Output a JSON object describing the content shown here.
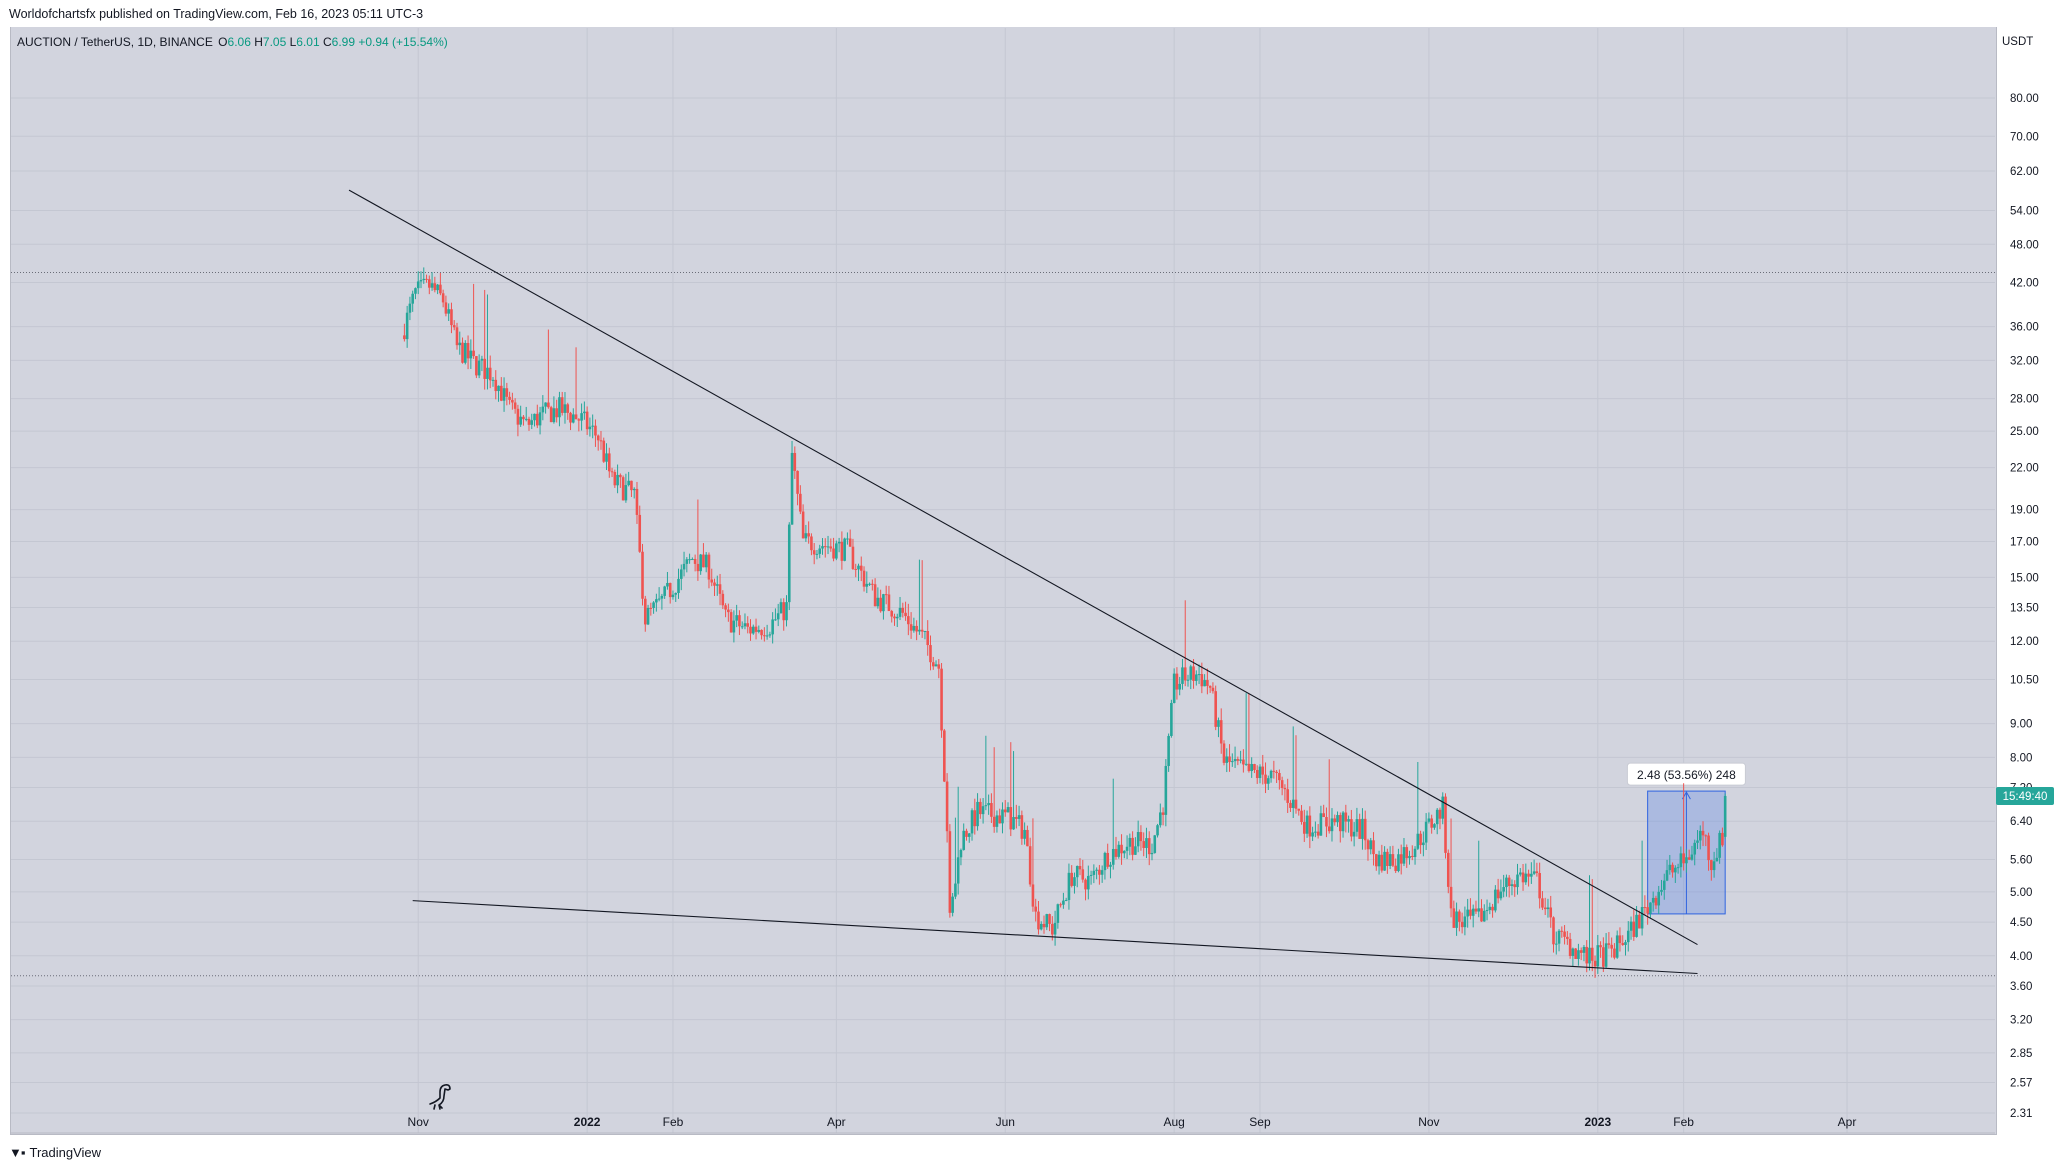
{
  "header": {
    "published": "Worldofchartsfx published on TradingView.com, Feb 16, 2023 05:11 UTC-3"
  },
  "legend": {
    "symbol": "AUCTION / TetherUS, 1D, BINANCE",
    "o_label": "O",
    "o_value": "6.06",
    "h_label": "H",
    "h_value": "7.05",
    "l_label": "L",
    "l_value": "6.01",
    "c_label": "C",
    "c_value": "6.99",
    "change": "+0.94 (+15.54%)"
  },
  "measure": {
    "label": "2.48 (53.56%) 248",
    "from_price": 4.63,
    "to_price": 7.11,
    "start_date": "2023-01-19",
    "end_date": "2023-02-16"
  },
  "countdown": "15:49:40",
  "footer": {
    "brand": "TradingView"
  },
  "colors": {
    "up": "#26a69a",
    "down": "#ef5350",
    "countdown_bg": "#26a69a",
    "measure_fill": "#5b83e6",
    "trendline": "#131722"
  },
  "icons": {
    "watermark": "dinosaur-icon",
    "brand": "tradingview-logo-icon"
  },
  "chart_data": {
    "type": "candlestick",
    "title": "AUCTION / TetherUS, 1D, BINANCE",
    "currency": "USDT",
    "y_scale": "log",
    "ylim": [
      2.31,
      92
    ],
    "xlim": [
      "2021-10-10",
      "2023-05-15"
    ],
    "y_ticks": [
      "80.00",
      "70.00",
      "62.00",
      "54.00",
      "48.00",
      "42.00",
      "36.00",
      "32.00",
      "28.00",
      "25.00",
      "22.00",
      "19.00",
      "17.00",
      "15.00",
      "13.50",
      "12.00",
      "10.50",
      "9.00",
      "8.00",
      "7.20",
      "6.40",
      "5.60",
      "5.00",
      "4.50",
      "4.00",
      "3.60",
      "3.20",
      "2.85",
      "2.57",
      "2.31"
    ],
    "x_ticks": [
      {
        "date": "2021-11-01",
        "label": "Nov",
        "bold": false
      },
      {
        "date": "2022-01-01",
        "label": "2022",
        "bold": true
      },
      {
        "date": "2022-02-01",
        "label": "Feb",
        "bold": false
      },
      {
        "date": "2022-04-01",
        "label": "Apr",
        "bold": false
      },
      {
        "date": "2022-06-01",
        "label": "Jun",
        "bold": false
      },
      {
        "date": "2022-08-01",
        "label": "Aug",
        "bold": false
      },
      {
        "date": "2022-09-01",
        "label": "Sep",
        "bold": false
      },
      {
        "date": "2022-11-01",
        "label": "Nov",
        "bold": false
      },
      {
        "date": "2023-01-01",
        "label": "2023",
        "bold": true
      },
      {
        "date": "2023-02-01",
        "label": "Feb",
        "bold": false
      },
      {
        "date": "2023-04-01",
        "label": "Apr",
        "bold": false
      }
    ],
    "dotted_levels": [
      43.5,
      3.73
    ],
    "trendlines": [
      {
        "name": "descending-resistance",
        "from": {
          "date": "2021-10-07",
          "price": 58.0
        },
        "to": {
          "date": "2023-02-06",
          "price": 4.16
        }
      },
      {
        "name": "descending-support",
        "from": {
          "date": "2021-10-30",
          "price": 4.85
        },
        "to": {
          "date": "2023-02-06",
          "price": 3.76
        }
      }
    ],
    "anchors": [
      {
        "date": "2021-10-27",
        "price": 36.0
      },
      {
        "date": "2021-10-31",
        "price": 40.5
      },
      {
        "date": "2021-11-05",
        "price": 41.5
      },
      {
        "date": "2021-11-10",
        "price": 39.5
      },
      {
        "date": "2021-11-15",
        "price": 33.5
      },
      {
        "date": "2021-11-22",
        "price": 31.5
      },
      {
        "date": "2021-11-28",
        "price": 30.5
      },
      {
        "date": "2021-12-04",
        "price": 27.0
      },
      {
        "date": "2021-12-10",
        "price": 25.5
      },
      {
        "date": "2021-12-16",
        "price": 26.5
      },
      {
        "date": "2021-12-22",
        "price": 27.0
      },
      {
        "date": "2021-12-30",
        "price": 26.0
      },
      {
        "date": "2022-01-05",
        "price": 24.5
      },
      {
        "date": "2022-01-10",
        "price": 21.0
      },
      {
        "date": "2022-01-18",
        "price": 20.0
      },
      {
        "date": "2022-01-22",
        "price": 13.0
      },
      {
        "date": "2022-01-28",
        "price": 13.8
      },
      {
        "date": "2022-02-08",
        "price": 16.0
      },
      {
        "date": "2022-02-14",
        "price": 15.5
      },
      {
        "date": "2022-02-20",
        "price": 13.0
      },
      {
        "date": "2022-02-28",
        "price": 12.5
      },
      {
        "date": "2022-03-08",
        "price": 12.7
      },
      {
        "date": "2022-03-14",
        "price": 13.5
      },
      {
        "date": "2022-03-16",
        "price": 23.0
      },
      {
        "date": "2022-03-20",
        "price": 17.0
      },
      {
        "date": "2022-03-28",
        "price": 16.8
      },
      {
        "date": "2022-04-05",
        "price": 16.5
      },
      {
        "date": "2022-04-15",
        "price": 14.0
      },
      {
        "date": "2022-04-25",
        "price": 13.2
      },
      {
        "date": "2022-05-03",
        "price": 12.0
      },
      {
        "date": "2022-05-08",
        "price": 11.0
      },
      {
        "date": "2022-05-11",
        "price": 6.3
      },
      {
        "date": "2022-05-12",
        "price": 4.5
      },
      {
        "date": "2022-05-16",
        "price": 6.0
      },
      {
        "date": "2022-05-22",
        "price": 6.6
      },
      {
        "date": "2022-06-02",
        "price": 6.5
      },
      {
        "date": "2022-06-08",
        "price": 6.2
      },
      {
        "date": "2022-06-12",
        "price": 4.6
      },
      {
        "date": "2022-06-18",
        "price": 4.4
      },
      {
        "date": "2022-06-25",
        "price": 5.3
      },
      {
        "date": "2022-07-02",
        "price": 5.2
      },
      {
        "date": "2022-07-08",
        "price": 5.7
      },
      {
        "date": "2022-07-16",
        "price": 5.95
      },
      {
        "date": "2022-07-24",
        "price": 5.9
      },
      {
        "date": "2022-07-28",
        "price": 6.8
      },
      {
        "date": "2022-08-01",
        "price": 10.3
      },
      {
        "date": "2022-08-05",
        "price": 10.6
      },
      {
        "date": "2022-08-10",
        "price": 10.7
      },
      {
        "date": "2022-08-14",
        "price": 10.2
      },
      {
        "date": "2022-08-19",
        "price": 7.9
      },
      {
        "date": "2022-08-27",
        "price": 7.6
      },
      {
        "date": "2022-09-05",
        "price": 7.5
      },
      {
        "date": "2022-09-10",
        "price": 7.1
      },
      {
        "date": "2022-09-18",
        "price": 6.3
      },
      {
        "date": "2022-09-28",
        "price": 6.4
      },
      {
        "date": "2022-10-08",
        "price": 6.2
      },
      {
        "date": "2022-10-13",
        "price": 5.6
      },
      {
        "date": "2022-10-20",
        "price": 5.6
      },
      {
        "date": "2022-10-27",
        "price": 5.9
      },
      {
        "date": "2022-11-06",
        "price": 6.7
      },
      {
        "date": "2022-11-09",
        "price": 4.6
      },
      {
        "date": "2022-11-13",
        "price": 4.5
      },
      {
        "date": "2022-11-19",
        "price": 4.55
      },
      {
        "date": "2022-11-27",
        "price": 5.05
      },
      {
        "date": "2022-12-04",
        "price": 5.3
      },
      {
        "date": "2022-12-10",
        "price": 5.2
      },
      {
        "date": "2022-12-16",
        "price": 4.3
      },
      {
        "date": "2022-12-22",
        "price": 4.15
      },
      {
        "date": "2022-12-29",
        "price": 3.95
      },
      {
        "date": "2023-01-06",
        "price": 4.05
      },
      {
        "date": "2023-01-12",
        "price": 4.3
      },
      {
        "date": "2023-01-19",
        "price": 4.75
      },
      {
        "date": "2023-01-26",
        "price": 5.3
      },
      {
        "date": "2023-02-02",
        "price": 5.6
      },
      {
        "date": "2023-02-08",
        "price": 6.2
      },
      {
        "date": "2023-02-11",
        "price": 5.55
      },
      {
        "date": "2023-02-15",
        "price": 6.06
      },
      {
        "date": "2023-02-16",
        "price": 6.99
      }
    ],
    "last_candle": {
      "date": "2023-02-16",
      "open": 6.06,
      "high": 7.05,
      "low": 6.01,
      "close": 6.99
    }
  }
}
